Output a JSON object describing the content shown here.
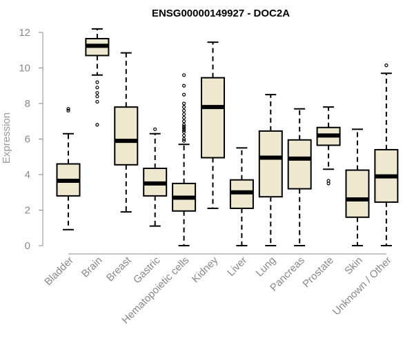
{
  "chart_data": {
    "type": "boxplot",
    "title": "ENSG00000149927 - DOC2A",
    "xlabel": "",
    "ylabel": "Expression",
    "ylim": [
      0,
      12
    ],
    "yticks": [
      0,
      2,
      4,
      6,
      8,
      10,
      12
    ],
    "grid": false,
    "colors": {
      "box_fill": "#EEE8D0",
      "stroke": "#000000",
      "axis": "#888888"
    },
    "categories": [
      "Bladder",
      "Brain",
      "Breast",
      "Gastric",
      "Hematopoietic cells",
      "Kidney",
      "Liver",
      "Lung",
      "Pancreas",
      "Prostate",
      "Skin",
      "Unknown / Other"
    ],
    "boxes": [
      {
        "category": "Bladder",
        "whisker_low": 0.9,
        "q1": 2.8,
        "median": 3.65,
        "q3": 4.6,
        "whisker_high": 6.3,
        "outliers": [
          7.6,
          7.7
        ]
      },
      {
        "category": "Brain",
        "whisker_low": 9.6,
        "q1": 10.7,
        "median": 11.25,
        "q3": 11.65,
        "whisker_high": 12.2,
        "outliers": [
          6.8,
          8.1,
          8.4,
          8.6,
          8.9,
          9.2
        ]
      },
      {
        "category": "Breast",
        "whisker_low": 1.9,
        "q1": 4.55,
        "median": 5.9,
        "q3": 7.8,
        "whisker_high": 10.85,
        "outliers": []
      },
      {
        "category": "Gastric",
        "whisker_low": 1.1,
        "q1": 2.8,
        "median": 3.5,
        "q3": 4.35,
        "whisker_high": 6.3,
        "outliers": [
          6.55
        ]
      },
      {
        "category": "Hematopoietic cells",
        "whisker_low": 0.0,
        "q1": 1.95,
        "median": 2.7,
        "q3": 3.5,
        "whisker_high": 5.7,
        "outliers": [
          5.9,
          6.0,
          6.2,
          6.4,
          6.5,
          6.6,
          6.7,
          6.8,
          7.0,
          7.2,
          7.4,
          7.6,
          7.8,
          8.0,
          8.5,
          9.0,
          9.6
        ]
      },
      {
        "category": "Kidney",
        "whisker_low": 2.1,
        "q1": 4.95,
        "median": 7.8,
        "q3": 9.45,
        "whisker_high": 11.45,
        "outliers": []
      },
      {
        "category": "Liver",
        "whisker_low": 0.0,
        "q1": 2.1,
        "median": 3.0,
        "q3": 3.7,
        "whisker_high": 5.5,
        "outliers": []
      },
      {
        "category": "Lung",
        "whisker_low": 0.0,
        "q1": 2.75,
        "median": 4.95,
        "q3": 6.45,
        "whisker_high": 8.5,
        "outliers": []
      },
      {
        "category": "Pancreas",
        "whisker_low": 0.0,
        "q1": 3.2,
        "median": 4.9,
        "q3": 5.95,
        "whisker_high": 7.7,
        "outliers": []
      },
      {
        "category": "Prostate",
        "whisker_low": 4.3,
        "q1": 5.65,
        "median": 6.2,
        "q3": 6.65,
        "whisker_high": 7.8,
        "outliers": [
          3.5,
          3.65
        ]
      },
      {
        "category": "Skin",
        "whisker_low": 0.0,
        "q1": 1.6,
        "median": 2.6,
        "q3": 4.25,
        "whisker_high": 6.55,
        "outliers": []
      },
      {
        "category": "Unknown / Other",
        "whisker_low": 0.0,
        "q1": 2.45,
        "median": 3.9,
        "q3": 5.4,
        "whisker_high": 9.7,
        "outliers": [
          10.15
        ]
      }
    ]
  }
}
